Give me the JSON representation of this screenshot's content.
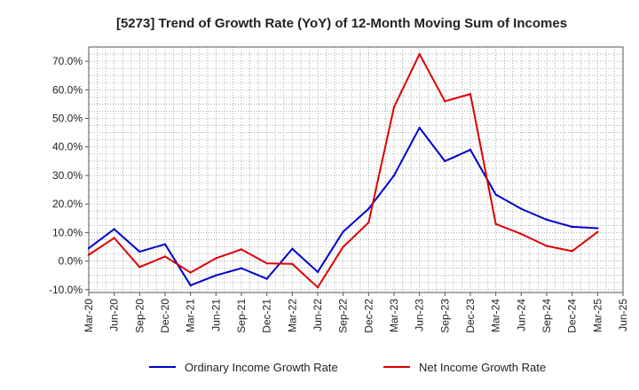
{
  "chart_data": {
    "type": "line",
    "title": "[5273]  Trend of Growth Rate (YoY) of 12-Month Moving Sum of Incomes",
    "xlabel": "",
    "ylabel": "",
    "x": [
      "Mar-20",
      "Jun-20",
      "Sep-20",
      "Dec-20",
      "Mar-21",
      "Jun-21",
      "Sep-21",
      "Dec-21",
      "Mar-22",
      "Jun-22",
      "Sep-22",
      "Dec-22",
      "Mar-23",
      "Jun-23",
      "Sep-23",
      "Dec-23",
      "Mar-24",
      "Jun-24",
      "Sep-24",
      "Dec-24",
      "Mar-25",
      "Jun-25"
    ],
    "y_ticks": [
      "-10.0%",
      "0.0%",
      "10.0%",
      "20.0%",
      "30.0%",
      "40.0%",
      "50.0%",
      "60.0%",
      "70.0%"
    ],
    "ylim": [
      -11,
      75
    ],
    "grid": true,
    "legend_position": "bottom",
    "series": [
      {
        "name": "Ordinary Income Growth Rate",
        "color": "#0000cc",
        "values": [
          4.5,
          11.2,
          3.3,
          5.9,
          -8.5,
          -5.0,
          -2.5,
          -6.2,
          4.3,
          -3.8,
          10.3,
          18.3,
          30.0,
          46.7,
          35.0,
          39.0,
          23.3,
          18.3,
          14.5,
          12.0,
          11.5,
          null
        ]
      },
      {
        "name": "Net Income Growth Rate",
        "color": "#dd0000",
        "values": [
          2.2,
          8.1,
          -2.1,
          1.6,
          -4.0,
          1.0,
          4.1,
          -0.8,
          -1.0,
          -9.2,
          5.0,
          13.5,
          54.0,
          72.5,
          56.0,
          58.5,
          13.0,
          9.5,
          5.3,
          3.5,
          10.2,
          null
        ]
      }
    ]
  }
}
